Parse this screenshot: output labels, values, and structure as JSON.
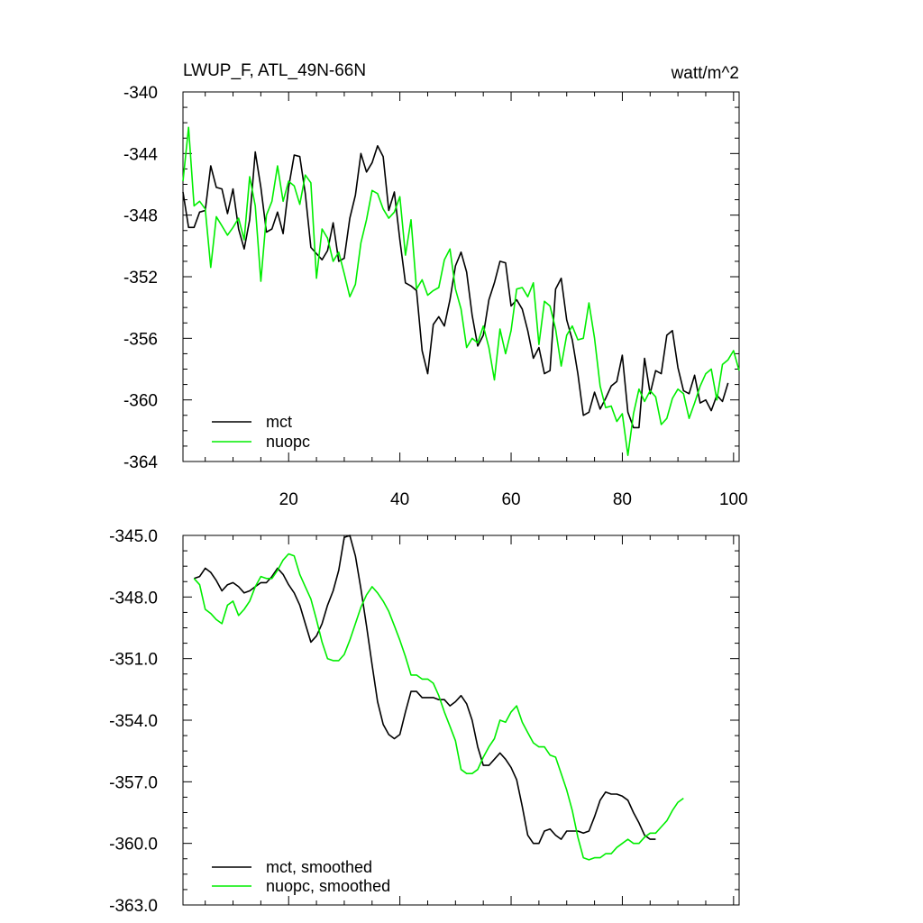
{
  "colors": {
    "mct": "#000000",
    "nuopc": "#00ee00",
    "axis": "#000000"
  },
  "chart_data": [
    {
      "type": "line",
      "title": "LWUP_F, ATL_49N-66N",
      "units": "watt/m^2",
      "xlim": [
        1,
        101
      ],
      "ylim": [
        -364,
        -340
      ],
      "xticks": [
        20,
        40,
        60,
        80,
        100
      ],
      "xtick_labels": [
        "20",
        "40",
        "60",
        "80",
        "100"
      ],
      "yticks": [
        -340,
        -344,
        -348,
        -352,
        -356,
        -360,
        -364
      ],
      "ytick_labels": [
        "-340",
        "-344",
        "-348",
        "-352",
        "-356",
        "-360",
        "-364"
      ],
      "legend_position": "bottom-left",
      "grid": false,
      "series": [
        {
          "name": "mct",
          "x_start": 1,
          "x_step": 1,
          "values": [
            -346.5,
            -348.8,
            -348.8,
            -347.8,
            -347.7,
            -344.8,
            -346.2,
            -346.3,
            -347.9,
            -346.3,
            -348.9,
            -350.2,
            -348.3,
            -343.9,
            -346.2,
            -349.1,
            -348.9,
            -347.8,
            -349.2,
            -346.2,
            -344.1,
            -344.2,
            -346.6,
            -350.1,
            -350.5,
            -350.9,
            -350.3,
            -348.5,
            -351.0,
            -350.8,
            -348.2,
            -346.7,
            -344.0,
            -345.2,
            -344.6,
            -343.5,
            -344.2,
            -347.7,
            -346.5,
            -349.6,
            -352.4,
            -352.6,
            -352.9,
            -356.8,
            -358.3,
            -355.1,
            -354.6,
            -355.2,
            -353.5,
            -351.3,
            -350.4,
            -351.7,
            -354.5,
            -356.5,
            -355.8,
            -353.5,
            -352.4,
            -351.0,
            -351.1,
            -353.9,
            -353.5,
            -354.1,
            -355.5,
            -357.3,
            -356.6,
            -358.3,
            -358.1,
            -352.8,
            -352.1,
            -354.8,
            -356.1,
            -358.3,
            -361.0,
            -360.8,
            -359.5,
            -360.6,
            -359.9,
            -359.1,
            -358.8,
            -357.1,
            -360.8,
            -361.8,
            -361.8,
            -357.3,
            -359.6,
            -358.1,
            -358.3,
            -355.8,
            -355.5,
            -357.9,
            -359.4,
            -359.6,
            -358.4,
            -360.2,
            -360.0,
            -360.7,
            -359.7,
            -360.1,
            -358.9
          ]
        },
        {
          "name": "nuopc",
          "x_start": 1,
          "x_step": 1,
          "values": [
            -345.8,
            -342.3,
            -347.4,
            -347.1,
            -347.6,
            -351.4,
            -348.1,
            -348.7,
            -349.3,
            -348.8,
            -348.2,
            -349.6,
            -345.5,
            -347.4,
            -352.3,
            -348.0,
            -347.1,
            -344.8,
            -347.1,
            -345.8,
            -346.1,
            -347.3,
            -345.4,
            -345.9,
            -352.1,
            -348.9,
            -349.5,
            -351.0,
            -350.4,
            -351.8,
            -353.3,
            -352.5,
            -349.8,
            -348.3,
            -346.4,
            -346.6,
            -347.6,
            -348.2,
            -347.8,
            -346.8,
            -350.6,
            -348.3,
            -352.8,
            -352.2,
            -353.2,
            -352.9,
            -352.7,
            -350.9,
            -350.2,
            -352.8,
            -354.1,
            -356.6,
            -356.0,
            -356.3,
            -355.2,
            -356.6,
            -358.7,
            -355.4,
            -357.0,
            -355.5,
            -352.8,
            -352.7,
            -353.3,
            -352.4,
            -356.4,
            -353.6,
            -353.9,
            -355.4,
            -357.8,
            -355.8,
            -355.2,
            -356.1,
            -356.0,
            -353.7,
            -356.0,
            -359.1,
            -360.5,
            -360.4,
            -361.4,
            -360.9,
            -363.6,
            -360.9,
            -359.3,
            -360.1,
            -359.4,
            -359.8,
            -361.6,
            -361.2,
            -359.9,
            -359.3,
            -359.6,
            -361.2,
            -360.2,
            -359.1,
            -358.3,
            -358.0,
            -360.0,
            -357.7,
            -357.4,
            -356.8,
            -358.1
          ]
        }
      ]
    },
    {
      "type": "line",
      "xlim": [
        1,
        101
      ],
      "ylim": [
        -363.0,
        -345.0
      ],
      "xticks": [
        20,
        40,
        60,
        80,
        100
      ],
      "yticks": [
        -345.0,
        -348.0,
        -351.0,
        -354.0,
        -357.0,
        -360.0,
        -363.0
      ],
      "ytick_labels": [
        "-345.0",
        "-348.0",
        "-351.0",
        "-354.0",
        "-357.0",
        "-360.0",
        "-363.0"
      ],
      "legend_position": "bottom-left",
      "grid": false,
      "series": [
        {
          "name": "mct, smoothed",
          "x_start": 3,
          "x_step": 1,
          "values": [
            -347.1,
            -347.0,
            -346.6,
            -346.8,
            -347.2,
            -347.7,
            -347.4,
            -347.3,
            -347.5,
            -347.8,
            -347.7,
            -347.5,
            -347.3,
            -347.3,
            -347.0,
            -346.6,
            -346.9,
            -347.4,
            -347.8,
            -348.4,
            -349.3,
            -350.2,
            -349.9,
            -349.3,
            -348.4,
            -347.7,
            -346.7,
            -345.1,
            -345.0,
            -346.0,
            -347.6,
            -349.4,
            -351.3,
            -353.1,
            -354.2,
            -354.7,
            -354.9,
            -354.7,
            -353.6,
            -352.6,
            -352.6,
            -352.9,
            -352.9,
            -352.9,
            -353.0,
            -353.0,
            -353.3,
            -353.1,
            -352.8,
            -353.2,
            -354.0,
            -355.3,
            -356.2,
            -356.2,
            -355.9,
            -355.6,
            -355.9,
            -356.3,
            -356.9,
            -358.2,
            -359.6,
            -360.0,
            -360.0,
            -359.4,
            -359.3,
            -359.6,
            -359.8,
            -359.4,
            -359.4,
            -359.4,
            -359.5,
            -359.4,
            -358.7,
            -357.9,
            -357.5,
            -357.6,
            -357.6,
            -357.7,
            -357.9,
            -358.5,
            -359.0,
            -359.6,
            -359.8,
            -359.8
          ]
        },
        {
          "name": "nuopc, smoothed",
          "x_start": 3,
          "x_step": 1,
          "values": [
            -347.1,
            -347.4,
            -348.6,
            -348.8,
            -349.1,
            -349.3,
            -348.4,
            -348.2,
            -348.9,
            -348.6,
            -348.2,
            -347.5,
            -347.0,
            -347.1,
            -347.1,
            -346.7,
            -346.2,
            -345.9,
            -346.0,
            -346.9,
            -347.5,
            -348.1,
            -349.1,
            -350.2,
            -351.0,
            -351.1,
            -351.1,
            -350.8,
            -350.1,
            -349.3,
            -348.5,
            -347.9,
            -347.5,
            -347.8,
            -348.2,
            -348.7,
            -349.4,
            -350.1,
            -350.9,
            -351.8,
            -351.8,
            -352.0,
            -352.0,
            -352.2,
            -352.8,
            -353.6,
            -354.3,
            -355.0,
            -356.4,
            -356.6,
            -356.6,
            -356.4,
            -355.8,
            -355.3,
            -354.9,
            -354.0,
            -354.1,
            -353.6,
            -353.3,
            -354.1,
            -354.6,
            -355.1,
            -355.3,
            -355.3,
            -355.7,
            -355.8,
            -356.6,
            -357.4,
            -358.4,
            -359.7,
            -360.7,
            -360.8,
            -360.7,
            -360.7,
            -360.5,
            -360.5,
            -360.2,
            -360.0,
            -359.8,
            -360.0,
            -360.0,
            -359.7,
            -359.5,
            -359.5,
            -359.2,
            -358.9,
            -358.4,
            -358.0,
            -357.8
          ]
        }
      ]
    }
  ]
}
